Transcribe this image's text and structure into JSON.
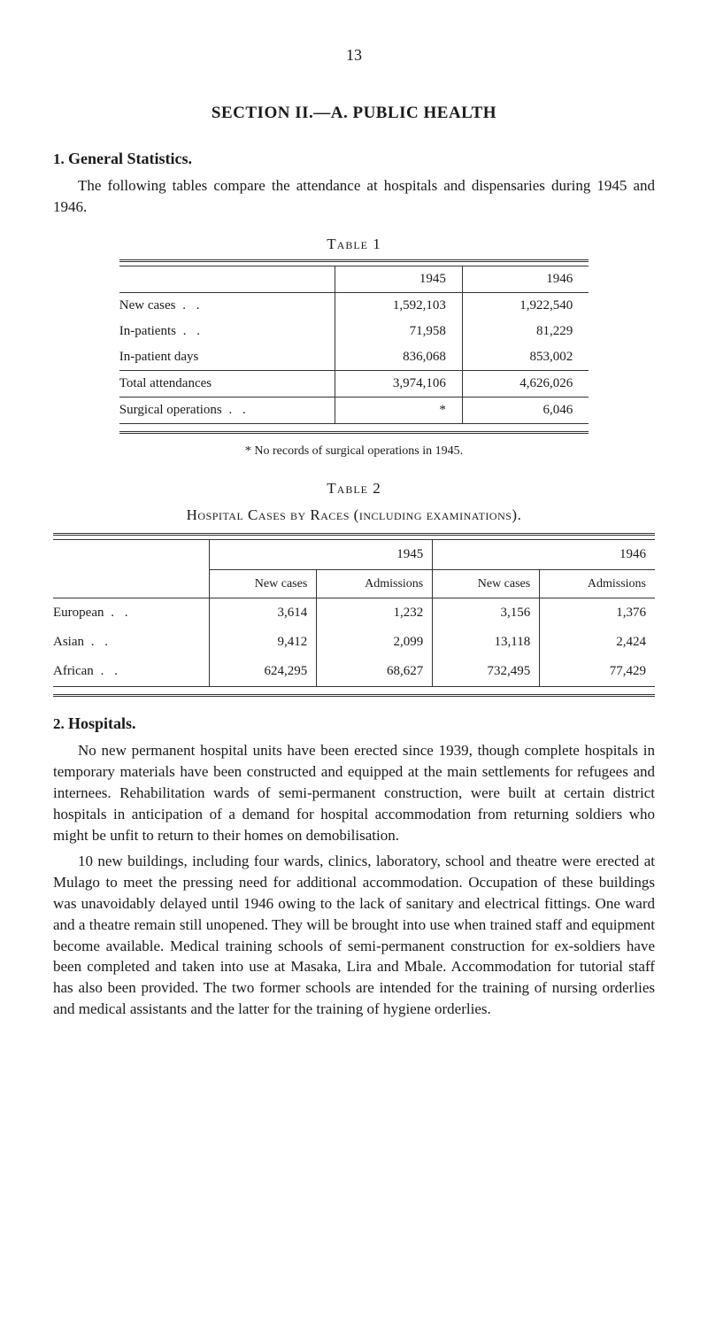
{
  "page_number": "13",
  "section_title": "SECTION II.—A. PUBLIC HEALTH",
  "heading1_num": "1.",
  "heading1_text": "General Statistics.",
  "intro_para": "The following tables compare the attendance at hospitals and dispensaries during 1945 and 1946.",
  "table1": {
    "caption": "Table 1",
    "headers": [
      "1945",
      "1946"
    ],
    "rows": [
      {
        "label": "New cases",
        "y1945": "1,592,103",
        "y1946": "1,922,540"
      },
      {
        "label": "In-patients",
        "y1945": "71,958",
        "y1946": "81,229"
      },
      {
        "label": "In-patient days",
        "y1945": "836,068",
        "y1946": "853,002"
      }
    ],
    "total": {
      "label": "Total attendances",
      "y1945": "3,974,106",
      "y1946": "4,626,026"
    },
    "surgical": {
      "label": "Surgical operations",
      "y1945": "*",
      "y1946": "6,046"
    }
  },
  "footnote1": "* No records of surgical operations in 1945.",
  "table2": {
    "caption": "Table 2",
    "subtitle": "Hospital Cases by Races (including examinations).",
    "year_headers": [
      "1945",
      "1946"
    ],
    "sub_headers": [
      "New cases",
      "Admissions",
      "New cases",
      "Admissions"
    ],
    "rows": [
      {
        "label": "European",
        "c1": "3,614",
        "c2": "1,232",
        "c3": "3,156",
        "c4": "1,376"
      },
      {
        "label": "Asian",
        "c1": "9,412",
        "c2": "2,099",
        "c3": "13,118",
        "c4": "2,424"
      },
      {
        "label": "African",
        "c1": "624,295",
        "c2": "68,627",
        "c3": "732,495",
        "c4": "77,429"
      }
    ]
  },
  "heading2_num": "2.",
  "heading2_text": "Hospitals.",
  "para2_1": "No new permanent hospital units have been erected since 1939, though complete hospitals in temporary materials have been constructed and equipped at the main settlements for refugees and internees. Rehabilitation wards of semi-permanent construction, were built at certain district hospitals in anticipation of a demand for hospital accommodation from returning soldiers who might be unfit to return to their homes on demobilisation.",
  "para2_2": "10 new buildings, including four wards, clinics, laboratory, school and theatre were erected at Mulago to meet the pressing need for additional accommodation. Occupation of these buildings was un­avoidably delayed until 1946 owing to the lack of sanitary and electrical fittings. One ward and a theatre remain still unopened. They will be brought into use when trained staff and equipment become available. Medical training schools of semi-permanent construction for ex-soldiers have been completed and taken into use at Masaka, Lira and Mbale. Accommodation for tutorial staff has also been provided. The two former schools are intended for the training of nursing orderlies and medical assistants and the latter for the training of hygiene orderlies."
}
